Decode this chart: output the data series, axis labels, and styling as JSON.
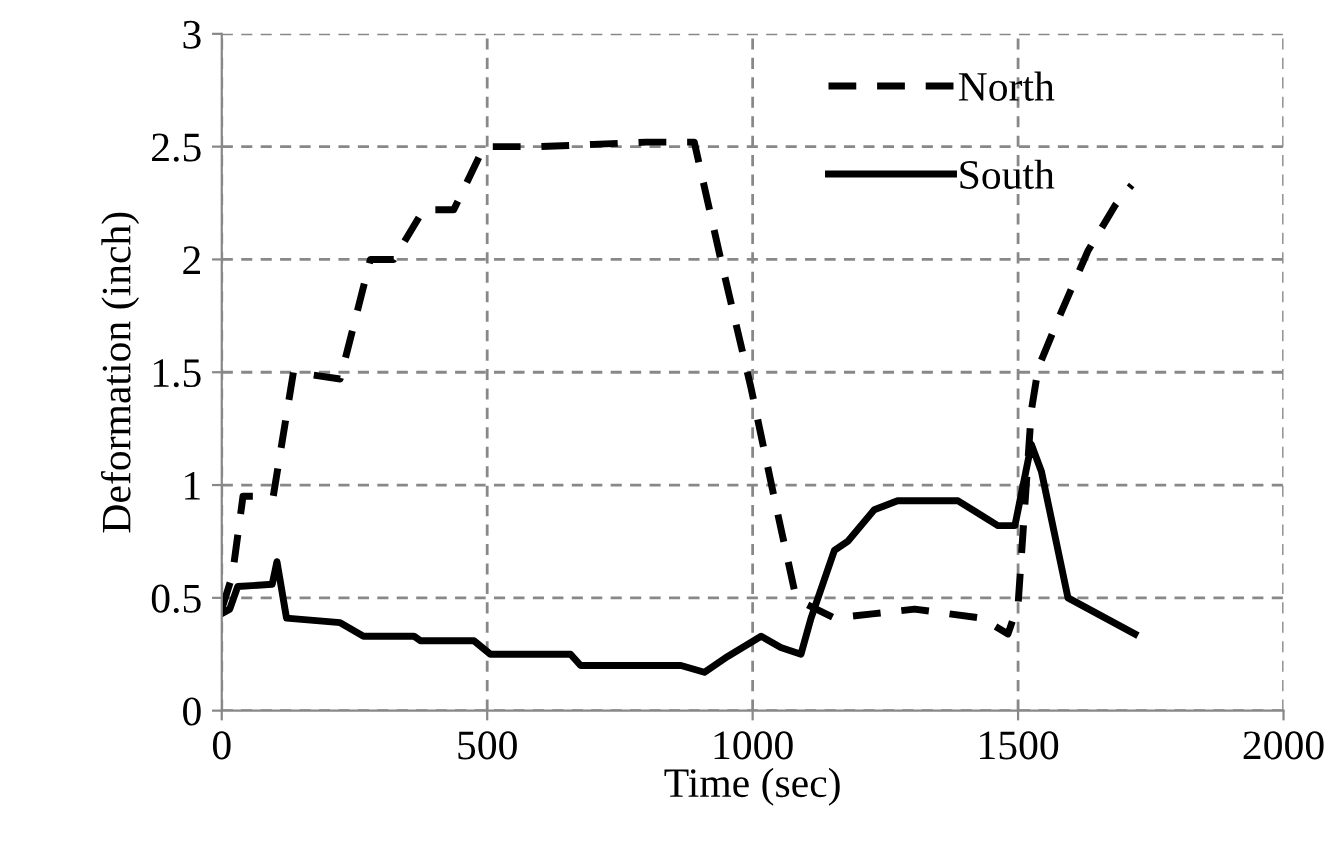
{
  "chart_data": {
    "type": "line",
    "xlabel": "Time (sec)",
    "ylabel": "Deformation (inch)",
    "xlim": [
      0,
      2000
    ],
    "ylim": [
      0,
      3
    ],
    "xticks": [
      0,
      500,
      1000,
      1500,
      2000
    ],
    "yticks": [
      0,
      0.5,
      1,
      1.5,
      2,
      2.5,
      3
    ],
    "grid": true,
    "legend": "top right",
    "marker": "none",
    "series": [
      {
        "name": "North",
        "color": "#000000",
        "line_style": "dashed",
        "x": [
          0,
          20,
          40,
          97,
          135,
          223,
          280,
          324,
          380,
          437,
          494,
          600,
          700,
          800,
          890,
          940,
          997,
          1041,
          1079,
          1103,
          1154,
          1230,
          1305,
          1431,
          1481,
          1500,
          1525,
          1538,
          1582,
          1632,
          1683,
          1714
        ],
        "values": [
          0.45,
          0.6,
          0.95,
          0.95,
          1.5,
          1.47,
          2.0,
          2.0,
          2.22,
          2.22,
          2.5,
          2.5,
          2.51,
          2.52,
          2.52,
          2.0,
          1.43,
          0.94,
          0.53,
          0.47,
          0.41,
          0.43,
          0.45,
          0.41,
          0.34,
          0.47,
          1.33,
          1.52,
          1.77,
          2.04,
          2.24,
          2.33
        ]
      },
      {
        "name": "South",
        "color": "#000000",
        "line_style": "solid",
        "x": [
          0,
          15,
          30,
          95,
          104,
          122,
          223,
          267,
          362,
          374,
          475,
          506,
          657,
          676,
          865,
          909,
          953,
          1016,
          1053,
          1091,
          1110,
          1154,
          1179,
          1229,
          1273,
          1387,
          1462,
          1494,
          1525,
          1544,
          1594,
          1720
        ],
        "values": [
          0.43,
          0.45,
          0.55,
          0.56,
          0.66,
          0.41,
          0.39,
          0.33,
          0.33,
          0.31,
          0.31,
          0.25,
          0.25,
          0.2,
          0.2,
          0.17,
          0.24,
          0.33,
          0.28,
          0.25,
          0.41,
          0.71,
          0.75,
          0.89,
          0.93,
          0.93,
          0.82,
          0.82,
          1.18,
          1.06,
          0.5,
          0.34
        ]
      }
    ]
  }
}
